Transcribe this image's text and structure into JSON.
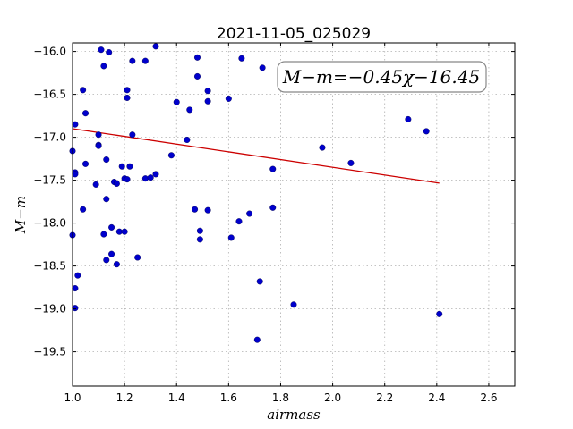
{
  "chart_data": {
    "type": "scatter",
    "title": "2021-11-05_025029",
    "xlabel": "airmass",
    "ylabel": "M−m",
    "xlim": [
      1.0,
      2.7
    ],
    "ylim": [
      -15.9,
      -19.9
    ],
    "xticks": [
      1.0,
      1.2,
      1.4,
      1.6,
      1.8,
      2.0,
      2.2,
      2.4,
      2.6
    ],
    "xtick_labels": [
      "1.0",
      "1.2",
      "1.4",
      "1.6",
      "1.8",
      "2.0",
      "2.2",
      "2.4",
      "2.6"
    ],
    "yticks": [
      -16.0,
      -16.5,
      -17.0,
      -17.5,
      -18.0,
      -18.5,
      -19.0,
      -19.5
    ],
    "ytick_labels": [
      "−16.0",
      "−16.5",
      "−17.0",
      "−17.5",
      "−18.0",
      "−18.5",
      "−19.0",
      "−19.5"
    ],
    "grid": true,
    "point_color": "#0000cc",
    "fit_color": "#cc0000",
    "annotation": "M−m=−0.45χ−16.45",
    "annotation_position": "top-right",
    "fit": {
      "slope": -0.45,
      "intercept": -16.45,
      "x_range": [
        1.0,
        2.41
      ]
    },
    "points": [
      {
        "x": 1.0,
        "y": -17.16
      },
      {
        "x": 1.0,
        "y": -18.14
      },
      {
        "x": 1.01,
        "y": -16.85
      },
      {
        "x": 1.01,
        "y": -17.41
      },
      {
        "x": 1.01,
        "y": -17.43
      },
      {
        "x": 1.01,
        "y": -18.76
      },
      {
        "x": 1.01,
        "y": -18.99
      },
      {
        "x": 1.02,
        "y": -18.61
      },
      {
        "x": 1.04,
        "y": -16.45
      },
      {
        "x": 1.04,
        "y": -17.84
      },
      {
        "x": 1.05,
        "y": -16.72
      },
      {
        "x": 1.05,
        "y": -17.31
      },
      {
        "x": 1.09,
        "y": -17.55
      },
      {
        "x": 1.1,
        "y": -16.97
      },
      {
        "x": 1.1,
        "y": -17.09
      },
      {
        "x": 1.1,
        "y": -17.1
      },
      {
        "x": 1.11,
        "y": -15.98
      },
      {
        "x": 1.12,
        "y": -16.17
      },
      {
        "x": 1.12,
        "y": -18.13
      },
      {
        "x": 1.13,
        "y": -17.26
      },
      {
        "x": 1.13,
        "y": -17.72
      },
      {
        "x": 1.13,
        "y": -18.43
      },
      {
        "x": 1.14,
        "y": -16.01
      },
      {
        "x": 1.15,
        "y": -18.36
      },
      {
        "x": 1.15,
        "y": -18.05
      },
      {
        "x": 1.16,
        "y": -17.52
      },
      {
        "x": 1.17,
        "y": -17.54
      },
      {
        "x": 1.17,
        "y": -18.48
      },
      {
        "x": 1.18,
        "y": -18.1
      },
      {
        "x": 1.19,
        "y": -17.34
      },
      {
        "x": 1.2,
        "y": -18.1
      },
      {
        "x": 1.2,
        "y": -17.48
      },
      {
        "x": 1.21,
        "y": -16.45
      },
      {
        "x": 1.21,
        "y": -16.54
      },
      {
        "x": 1.21,
        "y": -17.49
      },
      {
        "x": 1.22,
        "y": -17.34
      },
      {
        "x": 1.23,
        "y": -16.11
      },
      {
        "x": 1.23,
        "y": -16.97
      },
      {
        "x": 1.25,
        "y": -18.4
      },
      {
        "x": 1.28,
        "y": -16.11
      },
      {
        "x": 1.28,
        "y": -17.48
      },
      {
        "x": 1.3,
        "y": -17.47
      },
      {
        "x": 1.32,
        "y": -15.94
      },
      {
        "x": 1.32,
        "y": -17.43
      },
      {
        "x": 1.38,
        "y": -17.21
      },
      {
        "x": 1.4,
        "y": -16.59
      },
      {
        "x": 1.44,
        "y": -17.03
      },
      {
        "x": 1.45,
        "y": -16.68
      },
      {
        "x": 1.47,
        "y": -17.84
      },
      {
        "x": 1.48,
        "y": -16.07
      },
      {
        "x": 1.48,
        "y": -16.29
      },
      {
        "x": 1.49,
        "y": -18.19
      },
      {
        "x": 1.49,
        "y": -18.09
      },
      {
        "x": 1.52,
        "y": -16.46
      },
      {
        "x": 1.52,
        "y": -16.58
      },
      {
        "x": 1.52,
        "y": -17.85
      },
      {
        "x": 1.6,
        "y": -16.55
      },
      {
        "x": 1.61,
        "y": -18.17
      },
      {
        "x": 1.64,
        "y": -17.98
      },
      {
        "x": 1.65,
        "y": -16.08
      },
      {
        "x": 1.68,
        "y": -17.89
      },
      {
        "x": 1.71,
        "y": -19.36
      },
      {
        "x": 1.72,
        "y": -18.68
      },
      {
        "x": 1.73,
        "y": -16.19
      },
      {
        "x": 1.77,
        "y": -17.37
      },
      {
        "x": 1.77,
        "y": -17.82
      },
      {
        "x": 1.85,
        "y": -18.95
      },
      {
        "x": 1.96,
        "y": -17.12
      },
      {
        "x": 2.07,
        "y": -17.3
      },
      {
        "x": 2.29,
        "y": -16.79
      },
      {
        "x": 2.36,
        "y": -16.93
      },
      {
        "x": 2.41,
        "y": -19.06
      }
    ]
  }
}
